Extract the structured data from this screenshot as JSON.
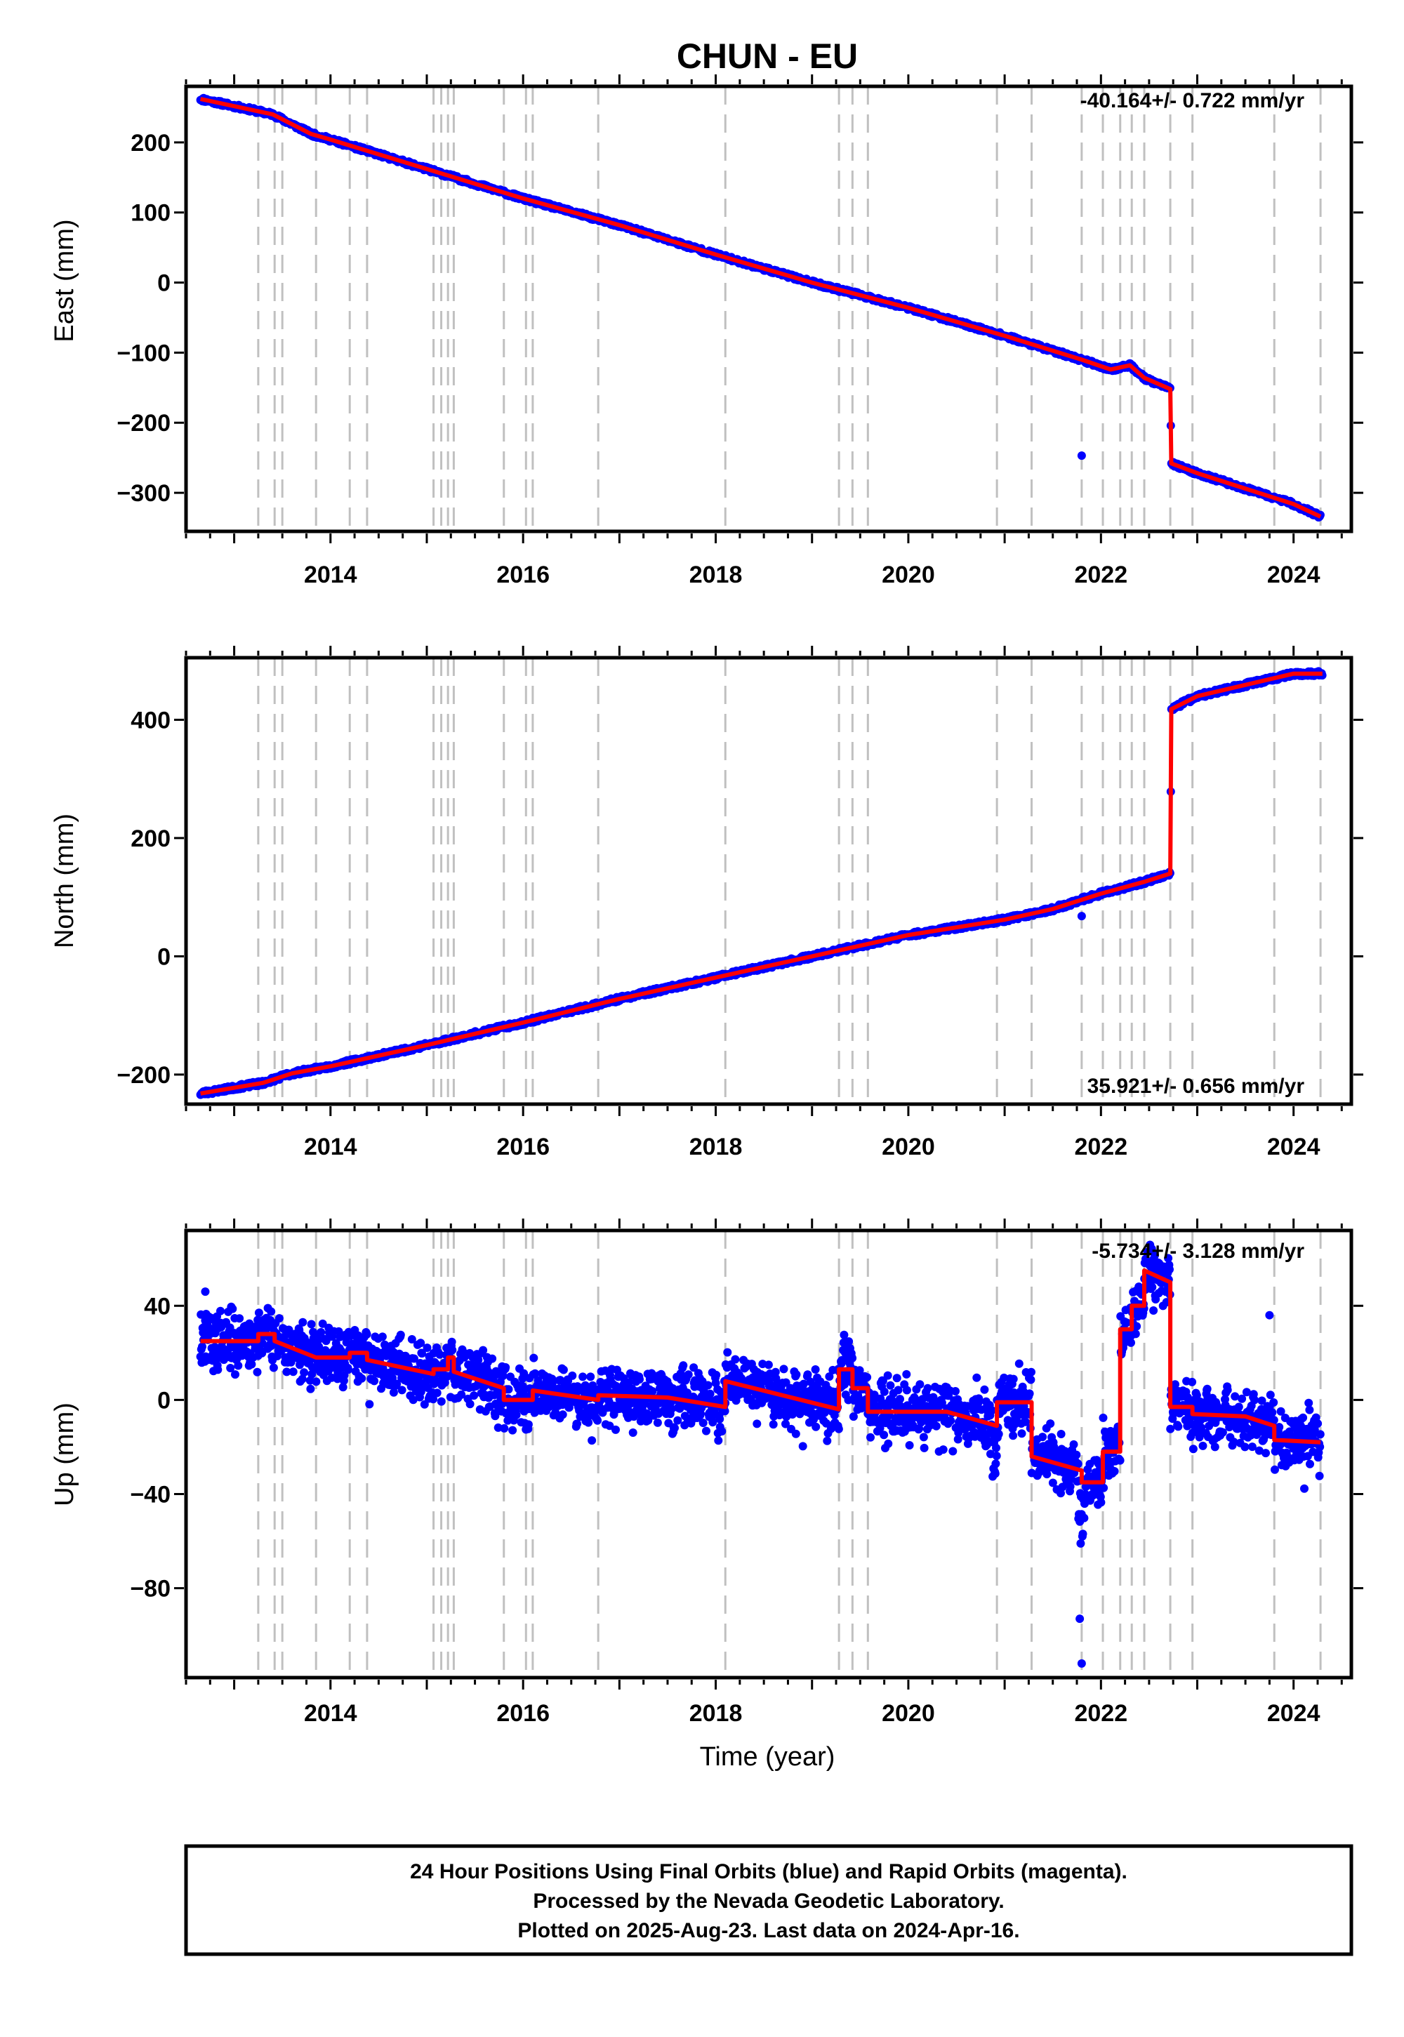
{
  "title": "CHUN - EU",
  "xlabel": "Time (year)",
  "footer": {
    "lines": [
      "24 Hour Positions Using Final Orbits (blue) and Rapid Orbits (magenta).",
      "Processed by the Nevada Geodetic Laboratory.",
      "Plotted on 2025-Aug-23. Last data on 2024-Apr-16."
    ]
  },
  "colors": {
    "data": "#0000ff",
    "model": "#ff0000",
    "breaks": "#c0c0c0"
  },
  "chart_data": [
    {
      "type": "scatter",
      "component": "east",
      "ylabel": "East (mm)",
      "rate_text": "-40.164+/- 0.722 mm/yr",
      "xlim": [
        2012.5,
        2024.6
      ],
      "ylim": [
        -355,
        280
      ],
      "x_ticks": [
        2014,
        2016,
        2018,
        2020,
        2022,
        2024
      ],
      "y_ticks": [
        200,
        100,
        0,
        -100,
        -200,
        -300
      ],
      "y_tick_labels": [
        "200",
        "100",
        "0",
        "−100",
        "−200",
        "−300"
      ],
      "breaks": [
        2013.25,
        2013.42,
        2013.5,
        2013.85,
        2014.2,
        2014.38,
        2015.07,
        2015.15,
        2015.22,
        2015.28,
        2015.8,
        2016.03,
        2016.1,
        2016.78,
        2018.1,
        2019.28,
        2019.42,
        2019.58,
        2020.92,
        2021.28,
        2021.8,
        2022.02,
        2022.2,
        2022.32,
        2022.45,
        2022.72,
        2022.95,
        2023.8,
        2024.28
      ],
      "model": [
        [
          2012.65,
          262
        ],
        [
          2013.4,
          240
        ],
        [
          2013.8,
          212
        ],
        [
          2014.0,
          204
        ],
        [
          2015.0,
          162
        ],
        [
          2016.0,
          120
        ],
        [
          2017.0,
          82
        ],
        [
          2018.0,
          40
        ],
        [
          2019.0,
          0
        ],
        [
          2020.0,
          -36
        ],
        [
          2021.0,
          -76
        ],
        [
          2021.8,
          -110
        ],
        [
          2022.1,
          -124
        ],
        [
          2022.3,
          -118
        ],
        [
          2022.45,
          -136
        ],
        [
          2022.72,
          -152
        ],
        [
          2022.73,
          -258
        ],
        [
          2023.0,
          -272
        ],
        [
          2024.0,
          -316
        ],
        [
          2024.28,
          -334
        ]
      ],
      "outliers": [
        [
          2021.8,
          -247
        ]
      ],
      "scatter": {
        "sigma": 3,
        "seed": 11
      }
    },
    {
      "type": "scatter",
      "component": "north",
      "ylabel": "North (mm)",
      "rate_text": "35.921+/- 0.656 mm/yr",
      "xlim": [
        2012.5,
        2024.6
      ],
      "ylim": [
        -250,
        505
      ],
      "x_ticks": [
        2014,
        2016,
        2018,
        2020,
        2022,
        2024
      ],
      "y_ticks": [
        400,
        200,
        0,
        -200
      ],
      "y_tick_labels": [
        "400",
        "200",
        "0",
        "−200"
      ],
      "breaks": [
        2013.25,
        2013.42,
        2013.5,
        2013.85,
        2014.2,
        2014.38,
        2015.07,
        2015.15,
        2015.22,
        2015.28,
        2015.8,
        2016.03,
        2016.1,
        2016.78,
        2018.1,
        2019.28,
        2019.42,
        2019.58,
        2020.92,
        2021.28,
        2021.8,
        2022.02,
        2022.2,
        2022.32,
        2022.45,
        2022.72,
        2022.95,
        2023.8,
        2024.28
      ],
      "model": [
        [
          2012.65,
          -232
        ],
        [
          2013.3,
          -214
        ],
        [
          2013.6,
          -198
        ],
        [
          2014.0,
          -186
        ],
        [
          2015.0,
          -150
        ],
        [
          2016.0,
          -112
        ],
        [
          2017.0,
          -72
        ],
        [
          2018.0,
          -36
        ],
        [
          2019.0,
          0
        ],
        [
          2020.0,
          36
        ],
        [
          2021.0,
          62
        ],
        [
          2021.5,
          80
        ],
        [
          2022.0,
          106
        ],
        [
          2022.45,
          126
        ],
        [
          2022.72,
          140
        ],
        [
          2022.73,
          418
        ],
        [
          2023.0,
          440
        ],
        [
          2024.0,
          478
        ],
        [
          2024.3,
          478
        ]
      ],
      "outliers": [
        [
          2021.8,
          68
        ]
      ],
      "scatter": {
        "sigma": 4,
        "seed": 23
      }
    },
    {
      "type": "scatter",
      "component": "up",
      "ylabel": "Up (mm)",
      "rate_text": "-5.734+/- 3.128 mm/yr",
      "xlim": [
        2012.5,
        2024.6
      ],
      "ylim": [
        -118,
        72
      ],
      "x_ticks": [
        2014,
        2016,
        2018,
        2020,
        2022,
        2024
      ],
      "y_ticks": [
        40,
        0,
        -40,
        -80
      ],
      "y_tick_labels": [
        "40",
        "0",
        "−40",
        "−80"
      ],
      "breaks": [
        2013.25,
        2013.42,
        2013.5,
        2013.85,
        2014.2,
        2014.38,
        2015.07,
        2015.15,
        2015.22,
        2015.28,
        2015.8,
        2016.03,
        2016.1,
        2016.78,
        2018.1,
        2019.28,
        2019.42,
        2019.58,
        2020.92,
        2021.28,
        2021.8,
        2022.02,
        2022.2,
        2022.32,
        2022.45,
        2022.72,
        2022.95,
        2023.8,
        2024.28
      ],
      "model": [
        [
          2012.65,
          25
        ],
        [
          2013.25,
          25
        ],
        [
          2013.25,
          28
        ],
        [
          2013.42,
          28
        ],
        [
          2013.42,
          25
        ],
        [
          2013.85,
          18
        ],
        [
          2014.2,
          18
        ],
        [
          2014.2,
          20
        ],
        [
          2014.38,
          20
        ],
        [
          2014.38,
          17
        ],
        [
          2015.07,
          11
        ],
        [
          2015.07,
          13
        ],
        [
          2015.22,
          13
        ],
        [
          2015.22,
          18
        ],
        [
          2015.28,
          18
        ],
        [
          2015.28,
          12
        ],
        [
          2015.8,
          5
        ],
        [
          2015.8,
          0
        ],
        [
          2016.1,
          0
        ],
        [
          2016.1,
          4
        ],
        [
          2016.78,
          0
        ],
        [
          2016.78,
          2
        ],
        [
          2017.5,
          1
        ],
        [
          2018.1,
          -3
        ],
        [
          2018.1,
          8
        ],
        [
          2019.28,
          -4
        ],
        [
          2019.28,
          13
        ],
        [
          2019.42,
          13
        ],
        [
          2019.42,
          5
        ],
        [
          2019.58,
          5
        ],
        [
          2019.58,
          -5
        ],
        [
          2020.4,
          -5
        ],
        [
          2020.92,
          -11
        ],
        [
          2020.92,
          -1
        ],
        [
          2021.28,
          -1
        ],
        [
          2021.28,
          -24
        ],
        [
          2021.8,
          -30
        ],
        [
          2021.8,
          -35
        ],
        [
          2022.02,
          -35
        ],
        [
          2022.02,
          -22
        ],
        [
          2022.2,
          -22
        ],
        [
          2022.2,
          30
        ],
        [
          2022.32,
          30
        ],
        [
          2022.32,
          40
        ],
        [
          2022.45,
          40
        ],
        [
          2022.45,
          55
        ],
        [
          2022.72,
          50
        ],
        [
          2022.72,
          -3
        ],
        [
          2022.95,
          -3
        ],
        [
          2022.95,
          -6
        ],
        [
          2023.5,
          -7
        ],
        [
          2023.8,
          -11
        ],
        [
          2023.8,
          -17
        ],
        [
          2024.28,
          -18
        ]
      ],
      "spikes": [
        [
          2020.85,
          2020.97,
          -38
        ],
        [
          2021.2,
          2021.25,
          -28
        ],
        [
          2021.74,
          2021.85,
          -65
        ]
      ],
      "outliers": [
        [
          2021.8,
          -112
        ],
        [
          2021.78,
          -93
        ],
        [
          2023.75,
          36
        ],
        [
          2012.7,
          46
        ],
        [
          2013.35,
          39
        ]
      ],
      "scatter": {
        "sigma": 6,
        "seed": 37
      }
    }
  ]
}
